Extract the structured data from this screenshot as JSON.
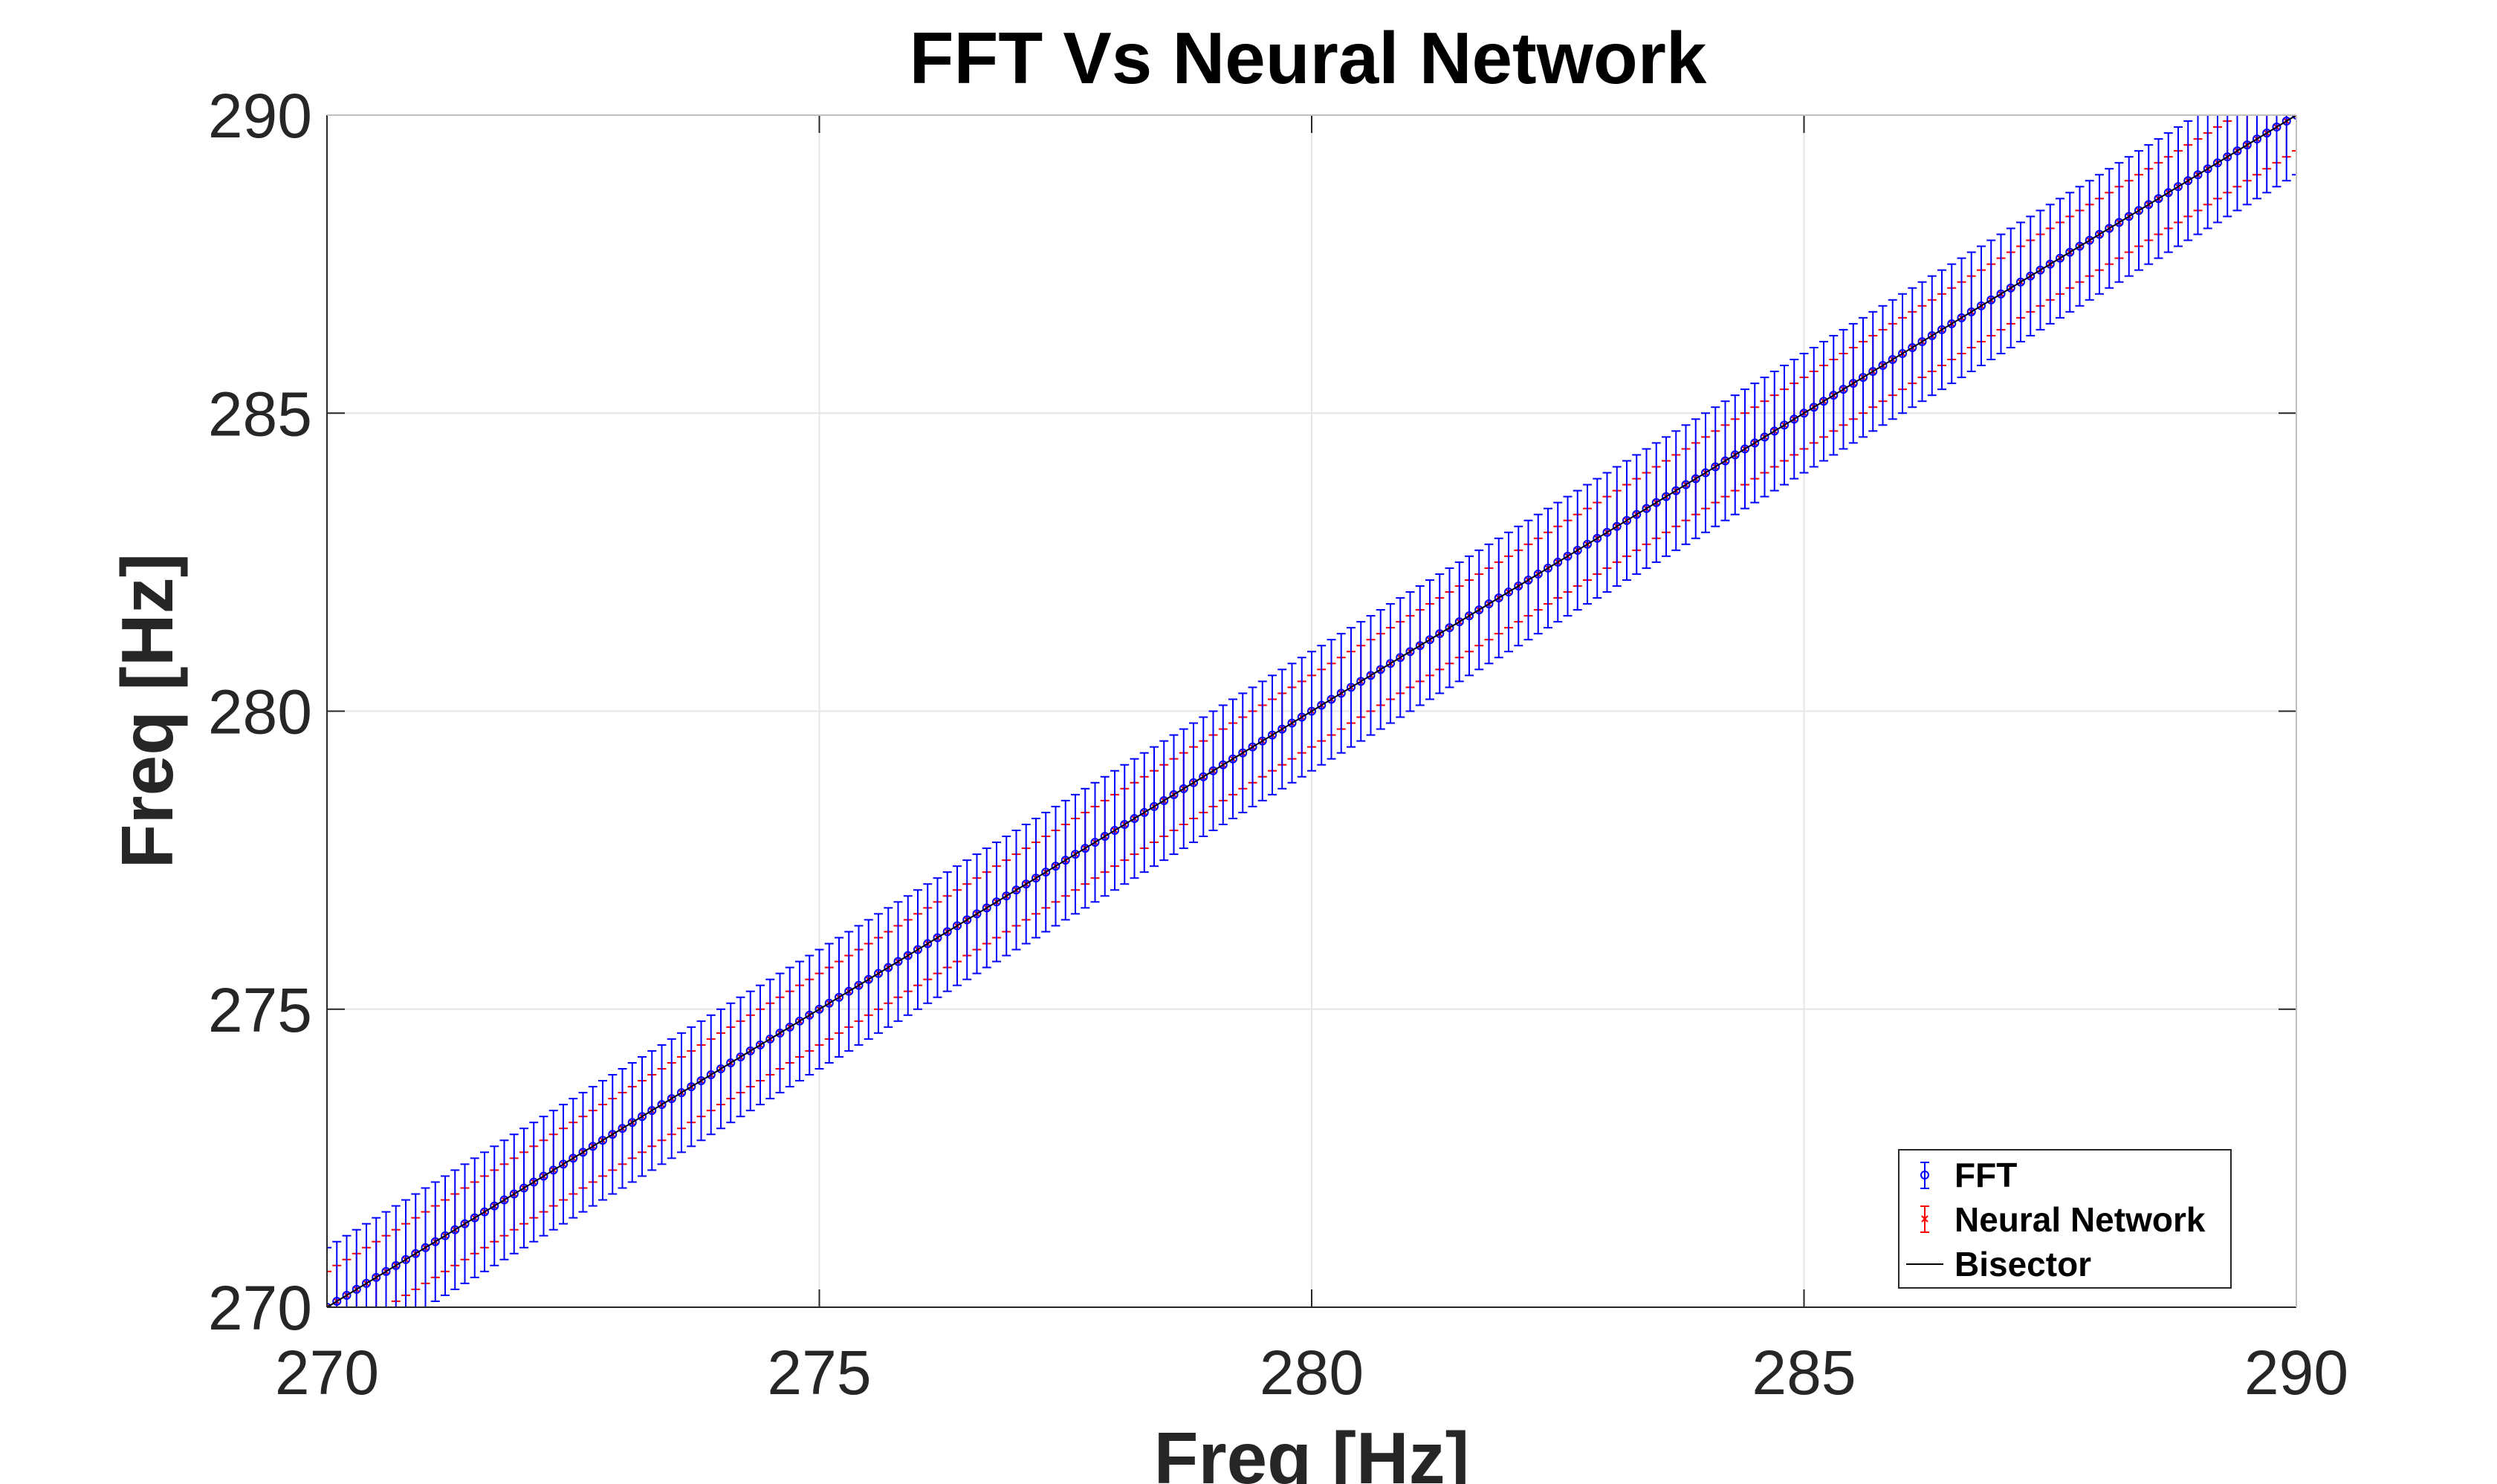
{
  "chart_data": {
    "type": "scatter",
    "title": "FFT Vs Neural Network",
    "xlabel": "Freq [Hz]",
    "ylabel": "Freq [Hz]",
    "xlim": [
      270,
      290
    ],
    "ylim": [
      270,
      290
    ],
    "xticks": [
      "270",
      "275",
      "280",
      "285",
      "290"
    ],
    "yticks": [
      "270",
      "275",
      "280",
      "285",
      "290"
    ],
    "grid": true,
    "legend_position": "bottom-right",
    "series": [
      {
        "name": "FFT",
        "marker": "circle",
        "color": "#0000ff",
        "x_start": 270,
        "x_end": 290,
        "x_step": 0.1,
        "y_equals_x": true,
        "error": 1.0
      },
      {
        "name": "Neural Network",
        "marker": "x",
        "color": "#ff0000",
        "x_start": 270,
        "x_end": 290,
        "x_step": 0.1,
        "y_equals_x": true,
        "error": 0.6
      },
      {
        "name": "Bisector",
        "type": "line",
        "color": "#000000",
        "x": [
          270,
          290
        ],
        "y": [
          270,
          290
        ]
      }
    ]
  }
}
